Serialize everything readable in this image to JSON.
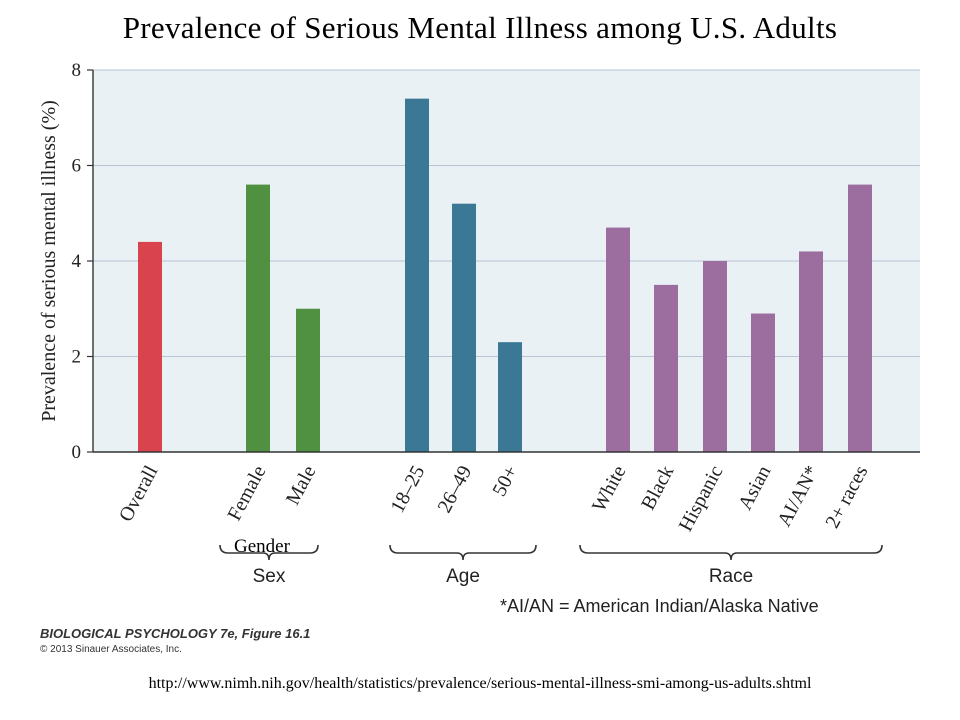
{
  "slide": {
    "title": "Prevalence of Serious Mental Illness among U.S. Adults",
    "gender_overlay": "Gender",
    "footnote": "*AI/AN = American Indian/Alaska Native",
    "book_credit": "BIOLOGICAL PSYCHOLOGY 7e, Figure 16.1",
    "copyright": "© 2013 Sinauer Associates, Inc.",
    "source_url": "http://www.nimh.nih.gov/health/statistics/prevalence/serious-mental-illness-smi-among-us-adults.shtml"
  },
  "chart_data": {
    "type": "bar",
    "title": "Prevalence of Serious Mental Illness among U.S. Adults",
    "ylabel": "Prevalence of serious mental illness (%)",
    "xlabel": "",
    "ylim": [
      0,
      8
    ],
    "yticks": [
      "0",
      "2",
      "4",
      "6",
      "8"
    ],
    "grid": true,
    "categories": [
      "Overall",
      "Female",
      "Male",
      "18–25",
      "26–49",
      "50+",
      "White",
      "Black",
      "Hispanic",
      "Asian",
      "AI/AN*",
      "2+ races"
    ],
    "values": [
      4.4,
      5.6,
      3.0,
      7.4,
      5.2,
      2.3,
      4.7,
      3.5,
      4.0,
      2.9,
      4.2,
      5.6
    ],
    "colors": [
      "#d9434d",
      "#4f9140",
      "#4f9140",
      "#3a7896",
      "#3a7896",
      "#3a7896",
      "#9b6e9f",
      "#9b6e9f",
      "#9b6e9f",
      "#9b6e9f",
      "#9b6e9f",
      "#9b6e9f"
    ],
    "groups": [
      {
        "label": "Sex",
        "members": [
          "Female",
          "Male"
        ]
      },
      {
        "label": "Age",
        "members": [
          "18–25",
          "26–49",
          "50+"
        ]
      },
      {
        "label": "Race",
        "members": [
          "White",
          "Black",
          "Hispanic",
          "Asian",
          "AI/AN*",
          "2+ races"
        ]
      }
    ],
    "plot_background": "#e9f1f5"
  }
}
